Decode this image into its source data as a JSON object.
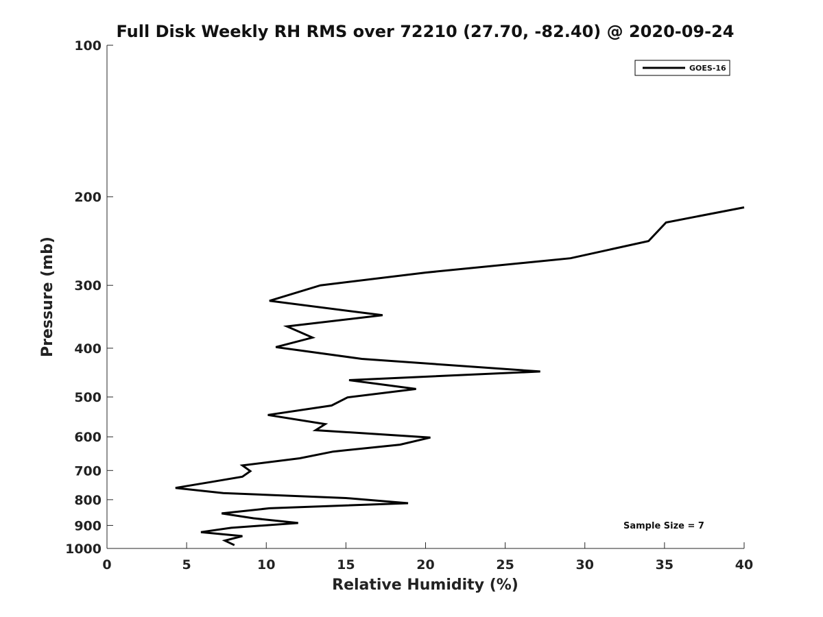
{
  "chart_data": {
    "type": "line",
    "title": "Full Disk Weekly RH RMS over 72210 (27.70, -82.40) @ 2020-09-24",
    "xlabel": "Relative Humidity (%)",
    "ylabel": "Pressure (mb)",
    "xlim": [
      0,
      40
    ],
    "ylim": [
      1000,
      100
    ],
    "yscale": "log",
    "xticks": [
      0,
      5,
      10,
      15,
      20,
      25,
      30,
      35,
      40
    ],
    "yticks": [
      100,
      200,
      300,
      400,
      500,
      600,
      700,
      800,
      900,
      1000
    ],
    "grid": false,
    "legend_position": "top-right",
    "series": [
      {
        "name": "GOES-16",
        "color": "#000000",
        "points": [
          [
            40.0,
            210
          ],
          [
            35.1,
            225
          ],
          [
            34.0,
            245
          ],
          [
            29.1,
            265
          ],
          [
            20.0,
            283
          ],
          [
            13.4,
            300
          ],
          [
            10.2,
            322
          ],
          [
            17.3,
            344
          ],
          [
            11.3,
            362
          ],
          [
            12.9,
            381
          ],
          [
            10.6,
            398
          ],
          [
            16.0,
            420
          ],
          [
            27.2,
            445
          ],
          [
            15.2,
            463
          ],
          [
            19.4,
            482
          ],
          [
            15.1,
            501
          ],
          [
            14.1,
            520
          ],
          [
            10.1,
            543
          ],
          [
            13.7,
            566
          ],
          [
            13.1,
            582
          ],
          [
            20.3,
            602
          ],
          [
            18.4,
            622
          ],
          [
            14.2,
            642
          ],
          [
            12.1,
            662
          ],
          [
            8.5,
            684
          ],
          [
            9.0,
            702
          ],
          [
            8.5,
            720
          ],
          [
            6.5,
            738
          ],
          [
            4.3,
            758
          ],
          [
            7.3,
            776
          ],
          [
            15.0,
            794
          ],
          [
            18.9,
            813
          ],
          [
            10.2,
            832
          ],
          [
            7.2,
            852
          ],
          [
            9.2,
            871
          ],
          [
            12.0,
            890
          ],
          [
            7.8,
            910
          ],
          [
            5.9,
            928
          ],
          [
            8.5,
            945
          ],
          [
            7.4,
            965
          ],
          [
            8.0,
            985
          ]
        ]
      }
    ],
    "annotations": [
      "Sample Size = 7"
    ]
  }
}
